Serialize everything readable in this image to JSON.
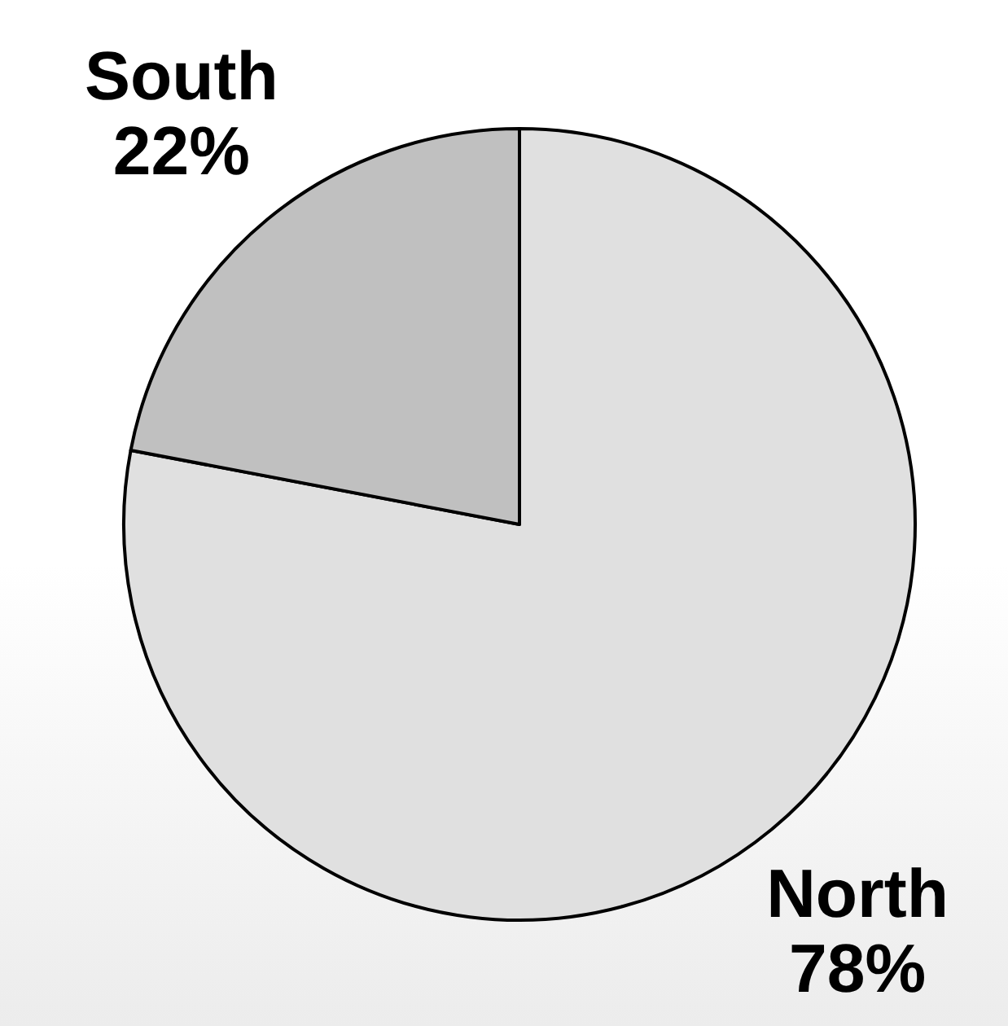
{
  "chart_data": {
    "type": "pie",
    "categories": [
      "North",
      "South"
    ],
    "values": [
      78,
      22
    ],
    "colors": [
      "#e0e0e0",
      "#c0c0c0"
    ],
    "value_labels": [
      "78%",
      "22%"
    ]
  }
}
